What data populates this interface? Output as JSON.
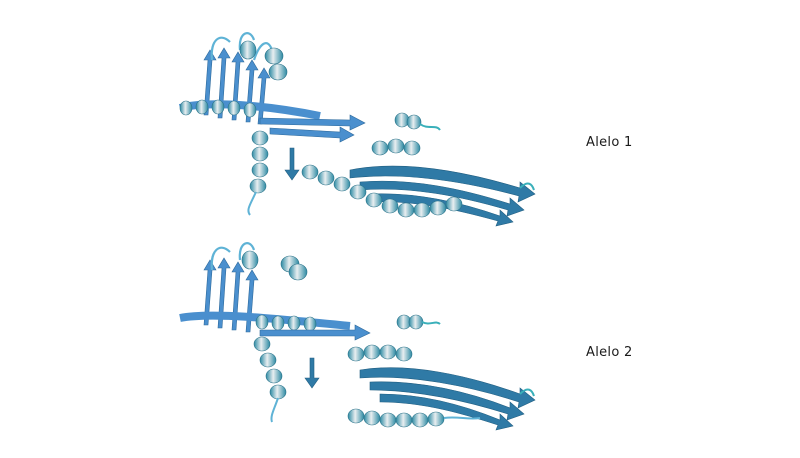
{
  "figure": {
    "labels": [
      "Alelo 1",
      "Alelo 2"
    ],
    "colors": {
      "sheet_light": "#4a8fce",
      "sheet_dark": "#2f7aa6",
      "helix": "#2c8aa3",
      "helix_highlight": "#e8eef0",
      "coil": "#5fb3d6",
      "coil_teal": "#3ab0ba"
    }
  }
}
